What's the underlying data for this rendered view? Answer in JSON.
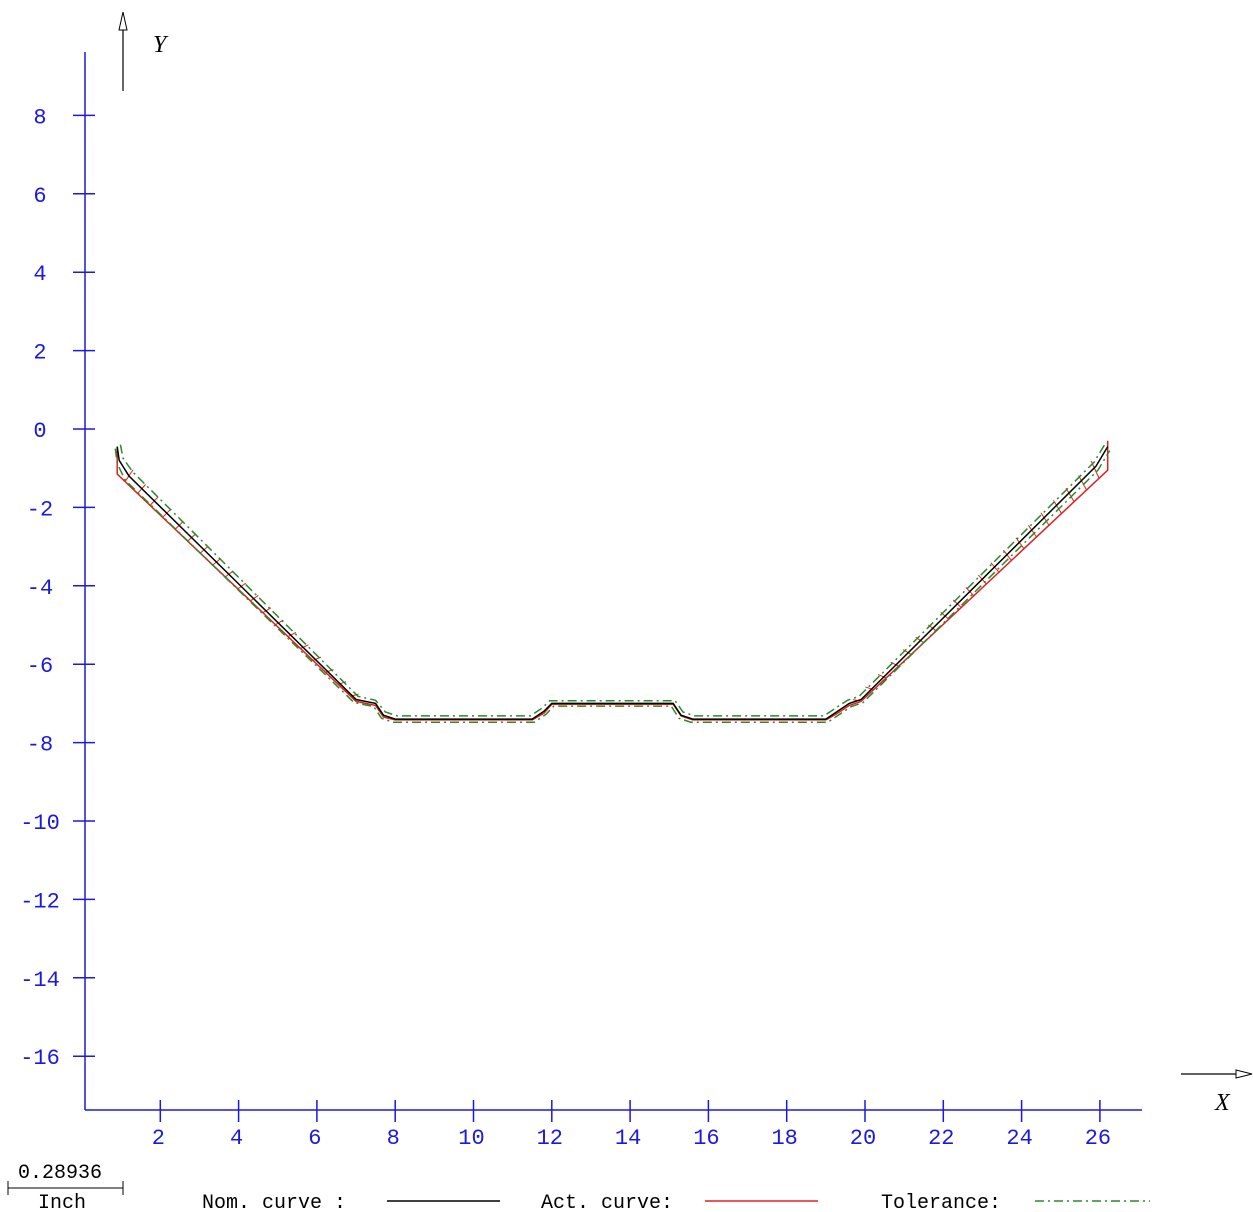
{
  "chart_data": {
    "type": "line",
    "title": "",
    "xlabel": "X",
    "ylabel": "Y",
    "xlim": [
      -1,
      26.9
    ],
    "ylim": [
      -17.5,
      9.5
    ],
    "x_ticks": [
      2,
      4,
      6,
      8,
      10,
      12,
      14,
      16,
      18,
      20,
      22,
      24,
      26
    ],
    "y_ticks": [
      8,
      6,
      4,
      2,
      0,
      -2,
      -4,
      -6,
      -8,
      -10,
      -12,
      -14,
      -16
    ],
    "grid": false,
    "legend_position": "bottom",
    "colors": {
      "axis": "#1a1adc",
      "nominal": "#000000",
      "actual": "#e02020",
      "tolerance": "#2a8a2a",
      "text": "#000000"
    },
    "series": [
      {
        "name": "Nom. curve :",
        "style": "solid",
        "points": [
          [
            0.9,
            -0.45
          ],
          [
            0.95,
            -0.8
          ],
          [
            1.2,
            -1.2
          ],
          [
            7.0,
            -6.9
          ],
          [
            7.5,
            -7.0
          ],
          [
            7.7,
            -7.3
          ],
          [
            8.0,
            -7.4
          ],
          [
            11.5,
            -7.4
          ],
          [
            11.8,
            -7.2
          ],
          [
            12.0,
            -7.0
          ],
          [
            15.1,
            -7.0
          ],
          [
            15.3,
            -7.3
          ],
          [
            15.6,
            -7.4
          ],
          [
            19.0,
            -7.4
          ],
          [
            19.3,
            -7.2
          ],
          [
            19.6,
            -7.0
          ],
          [
            19.9,
            -6.9
          ],
          [
            25.9,
            -0.95
          ],
          [
            26.2,
            -0.45
          ]
        ]
      },
      {
        "name": "Act. curve:",
        "style": "solid",
        "points": [
          [
            0.9,
            -0.45
          ],
          [
            0.9,
            -1.15
          ],
          [
            7.0,
            -6.95
          ],
          [
            7.5,
            -7.05
          ],
          [
            7.7,
            -7.35
          ],
          [
            8.0,
            -7.42
          ],
          [
            11.5,
            -7.42
          ],
          [
            11.8,
            -7.25
          ],
          [
            12.0,
            -7.02
          ],
          [
            15.1,
            -7.02
          ],
          [
            15.3,
            -7.32
          ],
          [
            15.6,
            -7.42
          ],
          [
            19.0,
            -7.42
          ],
          [
            19.3,
            -7.25
          ],
          [
            19.6,
            -7.05
          ],
          [
            19.9,
            -6.95
          ],
          [
            26.2,
            -1.05
          ],
          [
            26.2,
            -0.3
          ]
        ]
      },
      {
        "name": "Tolerance:",
        "style": "dashdot",
        "points_upper": [
          [
            0.98,
            -0.4
          ],
          [
            1.05,
            -0.75
          ],
          [
            1.3,
            -1.1
          ],
          [
            7.05,
            -6.82
          ],
          [
            7.5,
            -6.92
          ],
          [
            7.75,
            -7.22
          ],
          [
            8.05,
            -7.32
          ],
          [
            11.45,
            -7.32
          ],
          [
            11.75,
            -7.12
          ],
          [
            11.95,
            -6.93
          ],
          [
            15.15,
            -6.93
          ],
          [
            15.35,
            -7.22
          ],
          [
            15.65,
            -7.32
          ],
          [
            18.95,
            -7.32
          ],
          [
            19.25,
            -7.12
          ],
          [
            19.55,
            -6.92
          ],
          [
            19.85,
            -6.82
          ],
          [
            25.85,
            -0.85
          ],
          [
            26.15,
            -0.35
          ]
        ],
        "points_lower": [
          [
            0.85,
            -0.5
          ],
          [
            0.9,
            -0.88
          ],
          [
            1.1,
            -1.3
          ],
          [
            6.95,
            -6.98
          ],
          [
            7.45,
            -7.08
          ],
          [
            7.65,
            -7.38
          ],
          [
            7.95,
            -7.48
          ],
          [
            11.55,
            -7.48
          ],
          [
            11.85,
            -7.28
          ],
          [
            12.05,
            -7.07
          ],
          [
            15.05,
            -7.07
          ],
          [
            15.25,
            -7.38
          ],
          [
            15.55,
            -7.48
          ],
          [
            19.05,
            -7.48
          ],
          [
            19.35,
            -7.28
          ],
          [
            19.65,
            -7.08
          ],
          [
            19.95,
            -6.98
          ],
          [
            25.95,
            -1.05
          ],
          [
            26.25,
            -0.55
          ]
        ]
      }
    ],
    "scale_bar": {
      "value": "0.28936",
      "unit": "Inch"
    }
  }
}
